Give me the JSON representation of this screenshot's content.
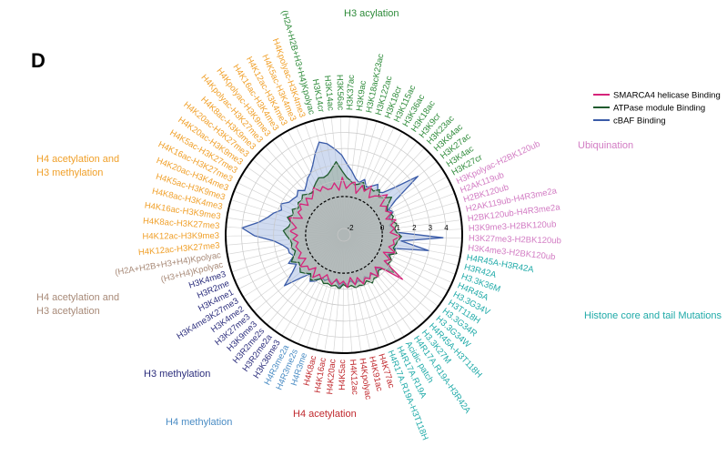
{
  "chart_data": {
    "type": "radar",
    "panel_label": "D",
    "rlim": [
      -2.4,
      5
    ],
    "rticks": [
      -2,
      0,
      1,
      2,
      3,
      4
    ],
    "grid": true,
    "legend": "upper right",
    "groups": [
      {
        "title": [
          "H3 acylation"
        ],
        "color": "#2e8b3a",
        "categories": [
          "(H2A+H2B+H3+H4)Kpolyac",
          "H3K14cr",
          "H3K14ac",
          "H3K56ac",
          "H3K37ac",
          "H3K9ac",
          "H3K18acK23ac",
          "H3K122ac",
          "H3K18cr",
          "H3K115ac",
          "H3K36ac",
          "H3K18ac",
          "H3K9cr",
          "H3K23ac",
          "H3K64ac",
          "H3K27ac",
          "H3K4ac",
          "H3K27cr"
        ]
      },
      {
        "title": [
          "Ubiquination"
        ],
        "color": "#d27bc3",
        "categories": [
          "H3Kpolyac-H2BK120ub",
          "H2AK119ub",
          "H2BK120ub",
          "H2AK119ub-H4R3me2a",
          "H2BK120ub-H4R3me2a",
          "H3K9me3-H2BK120ub",
          "H3K27me3-H2BK120ub",
          "H3K4me3-H2BK120ub"
        ]
      },
      {
        "title": [
          "Histone core and tail Mutations"
        ],
        "color": "#1faaa8",
        "categories": [
          "H4R45A-H3R42A",
          "H3R42A",
          "H3.3K36M",
          "H4R45A",
          "H3.3G34V",
          "H3T118H",
          "H3.3G34R",
          "H3.3G34W",
          "H4R45A-H3T118H",
          "H3.3K27M",
          "H4R17A.R19A-H3R42A",
          "Acidic patch",
          "H4R17A.R19A",
          "H4R17A.R19A-H3T118H"
        ]
      },
      {
        "title": [
          "H4 acetylation"
        ],
        "color": "#c0282d",
        "categories": [
          "H4K77ac",
          "H4K91ac",
          "H4Kpolyac",
          "H4K12ac",
          "H4K5ac",
          "H4K20ac",
          "H4K16ac",
          "H4K8ac"
        ]
      },
      {
        "title": [
          "H4 methylation"
        ],
        "color": "#4a8cc4",
        "categories": [
          "H4R3me",
          "H4R3me2s",
          "H4R3me2a"
        ]
      },
      {
        "title": [
          "H3 methylation"
        ],
        "color": "#2b2d7c",
        "categories": [
          "H3K36me3",
          "H3R2me2a",
          "H3R2me2s",
          "H3K9me3",
          "H3K27me3",
          "H3K4me2",
          "H3K4me3K27me3",
          "H3K4me1",
          "H3R2me",
          "H3K4me3"
        ]
      },
      {
        "title": [
          "H4 acetylation and",
          "H3 acetylation"
        ],
        "color": "#a88a78",
        "categories": [
          "(H3+H4)Kpolyac",
          "(H2A+H2B+H3+H4)Kpolyac"
        ]
      },
      {
        "title": [
          "H4 acetylation and",
          "H3 methylation"
        ],
        "color": "#f0a02a",
        "categories": [
          "H4K12ac-H3K27me3",
          "H4K12ac-H3K9me3",
          "H4K8ac-H3K27me3",
          "H4K16ac-H3K9me3",
          "H4K8ac-H3K4me3",
          "H4K5ac-H3K9me3",
          "H4K20ac-H3K4me3",
          "H4K16ac-H3K27me3",
          "H4K5ac-H3K27me3",
          "H4K20ac-H3K9me3",
          "H4K20ac-H3K27me3",
          "H4K8ac-H3K9me3",
          "H4Kpolyac-H3K27me3",
          "H4Kpolyac-H3K9me3",
          "H4K16ac-H3K4me3",
          "H4K12ac-H3K4me3",
          "H4K5ac-H3K4me3",
          "H4Kpolyac-H3K4me3"
        ]
      }
    ],
    "series": [
      {
        "name": "cBAF Binding",
        "color": "#3a5ba8",
        "fill": "#a9bde3",
        "values": [
          3.6,
          3.4,
          3.0,
          2.6,
          2.0,
          1.6,
          1.2,
          1.0,
          1.3,
          0.9,
          1.1,
          1.4,
          1.0,
          1.2,
          2.0,
          3.5,
          1.5,
          0.8,
          1.0,
          0.6,
          0.8,
          0.5,
          0.7,
          0.9,
          3.8,
          1.2,
          3.0,
          0.9,
          1.0,
          0.6,
          0.8,
          0.7,
          1.2,
          0.8,
          0.5,
          0.9,
          0.6,
          0.7,
          0.5,
          0.8,
          0.6,
          0.8,
          0.5,
          0.7,
          0.6,
          0.9,
          0.5,
          0.7,
          0.5,
          0.7,
          0.6,
          1.0,
          1.2,
          0.8,
          1.4,
          2.5,
          1.6,
          1.1,
          1.5,
          1.0,
          1.2,
          1.2,
          1.5,
          2.0,
          3.2,
          4.0,
          3.0,
          2.5,
          2.2,
          1.8,
          2.0,
          1.6,
          1.5,
          1.4,
          1.6,
          1.3,
          1.5,
          1.8,
          2.0,
          2.4,
          3.0
        ]
      },
      {
        "name": "ATPase module Binding",
        "color": "#1f5b2e",
        "fill": "#93a796",
        "values": [
          1.5,
          1.8,
          2.2,
          1.6,
          1.2,
          1.0,
          0.8,
          0.9,
          1.1,
          0.7,
          1.0,
          0.9,
          1.2,
          0.8,
          1.0,
          1.4,
          0.9,
          0.7,
          0.8,
          0.9,
          0.7,
          1.0,
          0.8,
          0.9,
          1.2,
          1.0,
          0.9,
          0.8,
          1.1,
          0.7,
          1.0,
          0.9,
          1.5,
          0.8,
          0.7,
          1.0,
          0.9,
          1.1,
          0.8,
          1.0,
          0.9,
          1.0,
          0.8,
          0.9,
          0.7,
          1.0,
          0.8,
          0.9,
          0.8,
          0.9,
          0.7,
          0.9,
          1.1,
          0.8,
          1.0,
          1.2,
          1.0,
          0.9,
          1.3,
          1.0,
          0.8,
          1.0,
          0.9,
          1.0,
          1.2,
          1.4,
          1.1,
          1.0,
          1.3,
          1.0,
          1.2,
          0.9,
          1.1,
          1.0,
          1.2,
          1.0,
          0.9,
          1.1,
          1.3,
          1.5,
          1.4
        ]
      },
      {
        "name": "SMARCA4 helicase Binding",
        "color": "#d6247a",
        "fill": "#b8b8b8",
        "values": [
          0.6,
          0.9,
          0.4,
          1.2,
          0.5,
          0.8,
          1.0,
          0.3,
          0.9,
          0.6,
          1.1,
          0.4,
          0.7,
          0.9,
          1.3,
          0.5,
          0.8,
          0.6,
          0.9,
          0.4,
          1.0,
          0.6,
          0.8,
          0.5,
          1.1,
          0.7,
          0.8,
          0.5,
          1.0,
          0.3,
          0.9,
          0.6,
          2.2,
          0.7,
          0.4,
          1.0,
          0.5,
          0.8,
          0.6,
          0.9,
          0.4,
          0.8,
          0.3,
          0.9,
          0.5,
          0.7,
          0.4,
          0.8,
          0.6,
          0.3,
          0.7,
          0.5,
          0.9,
          0.3,
          0.7,
          0.6,
          1.0,
          0.4,
          0.8,
          0.5,
          0.6,
          0.7,
          0.5,
          0.8,
          0.5,
          1.0,
          0.6,
          0.9,
          1.2,
          0.4,
          0.8,
          0.7,
          1.0,
          0.5,
          0.9,
          0.6,
          0.8,
          1.1,
          0.7,
          0.9,
          0.6
        ]
      }
    ]
  }
}
